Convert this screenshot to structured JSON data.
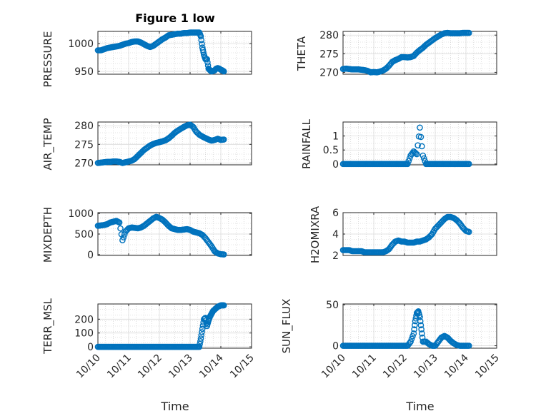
{
  "figure": {
    "title": "Figure 1 low",
    "marker_color": "#0072BD",
    "axis_color": "#262626"
  },
  "chart_data": [
    {
      "type": "scatter",
      "ylabel": "PRESSURE",
      "ylim": [
        945,
        1022
      ],
      "yticks": [
        950,
        1000
      ],
      "xlim": [
        0,
        5
      ],
      "x": [
        0.0,
        0.1,
        0.2,
        0.3,
        0.4,
        0.5,
        0.6,
        0.7,
        0.8,
        0.9,
        1.0,
        1.1,
        1.2,
        1.3,
        1.4,
        1.5,
        1.6,
        1.7,
        1.8,
        1.9,
        2.0,
        2.1,
        2.2,
        2.3,
        2.4,
        2.5,
        2.6,
        2.7,
        2.8,
        2.9,
        3.0,
        3.1,
        3.2,
        3.3,
        3.35,
        3.4,
        3.45,
        3.5,
        3.55,
        3.6,
        3.65,
        3.7,
        3.75,
        3.8,
        3.85,
        3.9,
        3.95,
        4.0,
        4.05,
        4.1
      ],
      "y": [
        988,
        988,
        990,
        992,
        993,
        994,
        995,
        996,
        998,
        1000,
        1001,
        1003,
        1004,
        1004,
        1002,
        999,
        996,
        994,
        996,
        1000,
        1004,
        1008,
        1011,
        1015,
        1016,
        1017,
        1018,
        1018,
        1019,
        1019,
        1020,
        1020,
        1020,
        1020,
        1013,
        993,
        980,
        972,
        972,
        955,
        952,
        950,
        951,
        952,
        955,
        956,
        955,
        953,
        952,
        950
      ]
    },
    {
      "type": "scatter",
      "ylabel": "THETA",
      "ylim": [
        269.5,
        281
      ],
      "yticks": [
        270,
        275,
        280
      ],
      "xlim": [
        0,
        5
      ],
      "x": [
        0.0,
        0.1,
        0.2,
        0.3,
        0.4,
        0.5,
        0.6,
        0.7,
        0.8,
        0.9,
        1.0,
        1.1,
        1.2,
        1.3,
        1.4,
        1.5,
        1.6,
        1.7,
        1.8,
        1.9,
        2.0,
        2.1,
        2.2,
        2.3,
        2.4,
        2.5,
        2.6,
        2.7,
        2.8,
        2.9,
        3.0,
        3.1,
        3.2,
        3.3,
        3.4,
        3.5,
        3.6,
        3.7,
        3.8,
        3.9,
        4.0,
        4.1
      ],
      "y": [
        270.9,
        271,
        270.9,
        270.8,
        270.8,
        270.8,
        270.7,
        270.6,
        270.4,
        270,
        270.1,
        270,
        270.2,
        270.5,
        271,
        271.8,
        272.8,
        273.3,
        273.6,
        274.1,
        274.1,
        274,
        274.1,
        274.4,
        275.3,
        276,
        276.6,
        277.4,
        278,
        278.6,
        279.2,
        279.7,
        280.2,
        280.5,
        280.6,
        280.5,
        280.5,
        280.5,
        280.5,
        280.6,
        280.6,
        280.6
      ]
    },
    {
      "type": "scatter",
      "ylabel": "AIR_TEMP",
      "ylim": [
        269.5,
        281
      ],
      "yticks": [
        270,
        275,
        280
      ],
      "xlim": [
        0,
        5
      ],
      "x": [
        0.0,
        0.1,
        0.2,
        0.3,
        0.4,
        0.5,
        0.6,
        0.7,
        0.8,
        0.9,
        1.0,
        1.1,
        1.2,
        1.3,
        1.4,
        1.5,
        1.6,
        1.7,
        1.8,
        1.9,
        2.0,
        2.1,
        2.2,
        2.3,
        2.4,
        2.5,
        2.6,
        2.7,
        2.8,
        2.9,
        3.0,
        3.1,
        3.2,
        3.3,
        3.4,
        3.5,
        3.6,
        3.7,
        3.8,
        3.9,
        4.0,
        4.1
      ],
      "y": [
        270,
        270.1,
        270.2,
        270.3,
        270.3,
        270.4,
        270.4,
        270.3,
        270,
        270.2,
        270.4,
        270.6,
        271.1,
        271.9,
        272.7,
        273.5,
        274.1,
        274.7,
        275.1,
        275.4,
        275.6,
        275.8,
        276.1,
        276.6,
        277.3,
        278.1,
        278.7,
        279.2,
        279.7,
        280.1,
        280.3,
        279.7,
        278.4,
        277.6,
        277.1,
        276.7,
        276.3,
        276,
        276.2,
        276.5,
        276.2,
        276.3
      ]
    },
    {
      "type": "scatter",
      "ylabel": "RAINFALL",
      "ylim": [
        -0.03,
        1.5
      ],
      "yticks": [
        0,
        0.5,
        1
      ],
      "xlim": [
        0,
        5
      ],
      "x": [
        0.0,
        0.1,
        0.2,
        0.3,
        0.4,
        0.5,
        0.6,
        0.7,
        0.8,
        0.9,
        1.0,
        1.1,
        1.2,
        1.3,
        1.4,
        1.5,
        1.6,
        1.7,
        1.8,
        1.9,
        2.0,
        2.1,
        2.2,
        2.3,
        2.4,
        2.5,
        2.6,
        2.7,
        2.8,
        2.9,
        3.0,
        3.1,
        3.2,
        3.3,
        3.4,
        3.5,
        3.6,
        3.7,
        3.8,
        3.9,
        4.0,
        4.1
      ],
      "y": [
        0,
        0,
        0,
        0,
        0,
        0,
        0,
        0,
        0,
        0,
        0,
        0,
        0,
        0,
        0,
        0,
        0,
        0,
        0,
        0,
        0,
        0,
        0.3,
        0.45,
        0.35,
        1.3,
        0.3,
        0,
        0,
        0,
        0,
        0,
        0,
        0,
        0,
        0,
        0,
        0,
        0,
        0,
        0,
        0
      ]
    },
    {
      "type": "scatter",
      "ylabel": "MIXDEPTH",
      "ylim": [
        -20,
        1020
      ],
      "yticks": [
        0,
        500,
        1000
      ],
      "xlim": [
        0,
        5
      ],
      "x": [
        0.0,
        0.1,
        0.2,
        0.3,
        0.4,
        0.5,
        0.6,
        0.7,
        0.8,
        0.9,
        1.0,
        1.1,
        1.2,
        1.3,
        1.4,
        1.5,
        1.6,
        1.7,
        1.8,
        1.9,
        2.0,
        2.1,
        2.2,
        2.3,
        2.4,
        2.5,
        2.6,
        2.7,
        2.8,
        2.9,
        3.0,
        3.1,
        3.2,
        3.3,
        3.4,
        3.5,
        3.6,
        3.7,
        3.8,
        3.9,
        4.0,
        4.1
      ],
      "y": [
        700,
        710,
        720,
        740,
        780,
        800,
        820,
        780,
        350,
        560,
        640,
        660,
        650,
        640,
        660,
        700,
        760,
        820,
        880,
        920,
        890,
        850,
        780,
        700,
        640,
        620,
        600,
        600,
        610,
        620,
        600,
        560,
        540,
        520,
        480,
        400,
        300,
        200,
        80,
        30,
        10,
        5
      ]
    },
    {
      "type": "scatter",
      "ylabel": "H2OMIXRA",
      "ylim": [
        2,
        6
      ],
      "yticks": [
        2,
        4,
        6
      ],
      "xlim": [
        0,
        5
      ],
      "x": [
        0.0,
        0.1,
        0.2,
        0.3,
        0.4,
        0.5,
        0.6,
        0.7,
        0.8,
        0.9,
        1.0,
        1.1,
        1.2,
        1.3,
        1.4,
        1.5,
        1.6,
        1.7,
        1.8,
        1.9,
        2.0,
        2.1,
        2.2,
        2.3,
        2.4,
        2.5,
        2.6,
        2.7,
        2.8,
        2.9,
        3.0,
        3.1,
        3.2,
        3.3,
        3.4,
        3.5,
        3.6,
        3.7,
        3.8,
        3.9,
        4.0,
        4.1
      ],
      "y": [
        2.5,
        2.5,
        2.5,
        2.4,
        2.4,
        2.4,
        2.4,
        2.3,
        2.3,
        2.3,
        2.3,
        2.3,
        2.3,
        2.3,
        2.4,
        2.6,
        3.0,
        3.3,
        3.4,
        3.3,
        3.3,
        3.2,
        3.2,
        3.2,
        3.3,
        3.3,
        3.4,
        3.5,
        3.7,
        4.0,
        4.5,
        4.8,
        5.1,
        5.4,
        5.6,
        5.6,
        5.5,
        5.3,
        5.0,
        4.6,
        4.3,
        4.2
      ]
    },
    {
      "type": "scatter",
      "ylabel": "TERR_MSL",
      "ylim": [
        -10,
        310
      ],
      "yticks": [
        0,
        100,
        200
      ],
      "xlim": [
        0,
        5
      ],
      "x": [
        0.0,
        0.1,
        0.2,
        0.3,
        0.4,
        0.5,
        0.6,
        0.7,
        0.8,
        0.9,
        1.0,
        1.1,
        1.2,
        1.3,
        1.4,
        1.5,
        1.6,
        1.7,
        1.8,
        1.9,
        2.0,
        2.1,
        2.2,
        2.3,
        2.4,
        2.5,
        2.6,
        2.7,
        2.8,
        2.9,
        3.0,
        3.1,
        3.2,
        3.3,
        3.35,
        3.4,
        3.45,
        3.5,
        3.55,
        3.6,
        3.65,
        3.7,
        3.75,
        3.8,
        3.85,
        3.9,
        3.95,
        4.0,
        4.05,
        4.1
      ],
      "y": [
        0,
        0,
        0,
        0,
        0,
        0,
        0,
        0,
        0,
        0,
        0,
        0,
        0,
        0,
        0,
        0,
        0,
        0,
        0,
        0,
        0,
        0,
        0,
        0,
        0,
        0,
        0,
        0,
        0,
        0,
        0,
        0,
        0,
        0,
        60,
        130,
        200,
        210,
        150,
        190,
        220,
        240,
        260,
        270,
        280,
        290,
        295,
        300,
        300,
        300
      ]
    },
    {
      "type": "scatter",
      "ylabel": "SUN_FLUX",
      "ylim": [
        -3,
        51
      ],
      "yticks": [
        0,
        50
      ],
      "xlim": [
        0,
        5
      ],
      "x": [
        0.0,
        0.1,
        0.2,
        0.3,
        0.4,
        0.5,
        0.6,
        0.7,
        0.8,
        0.9,
        1.0,
        1.1,
        1.2,
        1.3,
        1.4,
        1.5,
        1.6,
        1.7,
        1.8,
        1.9,
        2.0,
        2.1,
        2.2,
        2.3,
        2.35,
        2.4,
        2.45,
        2.5,
        2.55,
        2.6,
        2.7,
        2.8,
        2.9,
        3.0,
        3.1,
        3.2,
        3.3,
        3.4,
        3.5,
        3.6,
        3.7,
        3.8,
        3.9,
        4.0,
        4.1
      ],
      "y": [
        0,
        0,
        0,
        0,
        0,
        0,
        0,
        0,
        0,
        0,
        0,
        0,
        0,
        0,
        0,
        0,
        0,
        0,
        0,
        0,
        0,
        0,
        5,
        15,
        30,
        40,
        42,
        35,
        20,
        5,
        5,
        2,
        0,
        0,
        5,
        10,
        12,
        10,
        6,
        3,
        1,
        0,
        0,
        0,
        0
      ]
    }
  ],
  "x_axis": {
    "tick_labels": [
      "10/10",
      "10/11",
      "10/12",
      "10/13",
      "10/14",
      "10/15"
    ],
    "label": "Time"
  }
}
